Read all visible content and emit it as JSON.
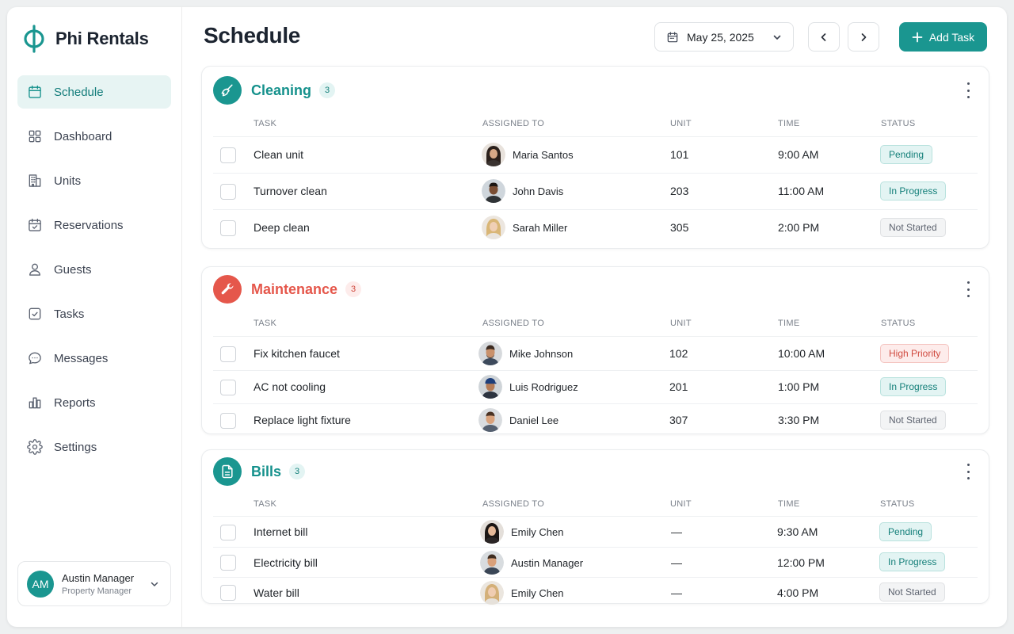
{
  "brand": {
    "name": "Phi Rentals",
    "color": "#1a9690"
  },
  "sidebar": {
    "items": [
      {
        "label": "Schedule",
        "icon": "calendar-icon",
        "active": true
      },
      {
        "label": "Dashboard",
        "icon": "grid-icon"
      },
      {
        "label": "Units",
        "icon": "building-icon"
      },
      {
        "label": "Reservations",
        "icon": "calendar-check-icon"
      },
      {
        "label": "Guests",
        "icon": "user-icon"
      },
      {
        "label": "Tasks",
        "icon": "checkbox-icon"
      },
      {
        "label": "Messages",
        "icon": "chat-icon"
      },
      {
        "label": "Reports",
        "icon": "bar-chart-icon"
      },
      {
        "label": "Settings",
        "icon": "gear-icon"
      }
    ],
    "user": {
      "initials": "AM",
      "name": "Austin Manager",
      "role": "Property Manager"
    }
  },
  "header": {
    "title": "Schedule",
    "date": "May 25, 2025",
    "add_label": "Add Task"
  },
  "columns": {
    "task": "TASK",
    "assigned": "ASSIGNED TO",
    "unit": "UNIT",
    "time": "TIME",
    "status": "STATUS"
  },
  "sections": [
    {
      "title": "Cleaning",
      "count": "3",
      "icon": "broom-icon",
      "color": "#1a9690",
      "rows": [
        {
          "task": "Clean unit",
          "assignee": "Maria Santos",
          "unit": "101",
          "time": "9:00 AM",
          "status": "Pending",
          "status_kind": "pending"
        },
        {
          "task": "Turnover clean",
          "assignee": "John Davis",
          "unit": "203",
          "time": "11:00 AM",
          "status": "In Progress",
          "status_kind": "progress"
        },
        {
          "task": "Deep clean",
          "assignee": "Sarah Miller",
          "unit": "305",
          "time": "2:00 PM",
          "status": "Not Started",
          "status_kind": "notstarted"
        }
      ]
    },
    {
      "title": "Maintenance",
      "count": "3",
      "icon": "wrench-icon",
      "color": "#e5574b",
      "rows": [
        {
          "task": "Fix kitchen faucet",
          "assignee": "Mike Johnson",
          "unit": "102",
          "time": "10:00 AM",
          "status": "High Priority",
          "status_kind": "high"
        },
        {
          "task": "AC not cooling",
          "assignee": "Luis Rodriguez",
          "unit": "201",
          "time": "1:00 PM",
          "status": "In Progress",
          "status_kind": "progress"
        },
        {
          "task": "Replace light fixture",
          "assignee": "Daniel Lee",
          "unit": "307",
          "time": "3:30 PM",
          "status": "Not Started",
          "status_kind": "notstarted"
        }
      ]
    },
    {
      "title": "Bills",
      "count": "3",
      "icon": "document-icon",
      "color": "#1a9690",
      "rows": [
        {
          "task": "Internet bill",
          "assignee": "Emily Chen",
          "unit": "—",
          "time": "9:30 AM",
          "status": "Pending",
          "status_kind": "pending"
        },
        {
          "task": "Electricity bill",
          "assignee": "Austin Manager",
          "unit": "—",
          "time": "12:00 PM",
          "status": "In Progress",
          "status_kind": "progress"
        },
        {
          "task": "Water bill",
          "assignee": "Emily Chen",
          "unit": "—",
          "time": "4:00 PM",
          "status": "Not Started",
          "status_kind": "notstarted"
        }
      ]
    }
  ]
}
